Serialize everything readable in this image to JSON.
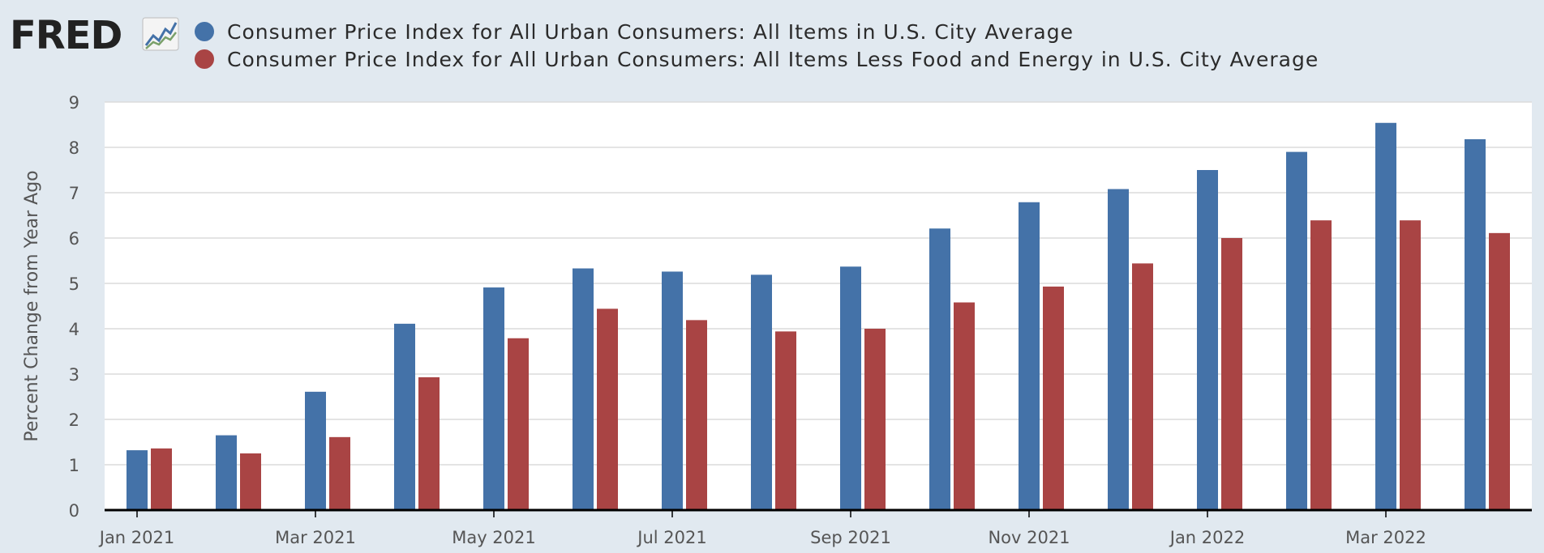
{
  "logo": {
    "text": "FRED",
    "icon": "line-chart-icon"
  },
  "chart_data": {
    "type": "bar",
    "title": "",
    "xlabel": "",
    "ylabel": "Percent Change from Year Ago",
    "ylim": [
      0,
      9
    ],
    "yticks": [
      0,
      1,
      2,
      3,
      4,
      5,
      6,
      7,
      8,
      9
    ],
    "grid": true,
    "legend_position": "top",
    "categories": [
      "2021-01",
      "2021-02",
      "2021-03",
      "2021-04",
      "2021-05",
      "2021-06",
      "2021-07",
      "2021-08",
      "2021-09",
      "2021-10",
      "2021-11",
      "2021-12",
      "2022-01",
      "2022-02",
      "2022-03",
      "2022-04"
    ],
    "xtick_labels": [
      {
        "category": "2021-01",
        "label": "Jan 2021"
      },
      {
        "category": "2021-03",
        "label": "Mar 2021"
      },
      {
        "category": "2021-05",
        "label": "May 2021"
      },
      {
        "category": "2021-07",
        "label": "Jul 2021"
      },
      {
        "category": "2021-09",
        "label": "Sep 2021"
      },
      {
        "category": "2021-11",
        "label": "Nov 2021"
      },
      {
        "category": "2022-01",
        "label": "Jan 2022"
      },
      {
        "category": "2022-03",
        "label": "Mar 2022"
      }
    ],
    "series": [
      {
        "name": "Consumer Price Index for All Urban Consumers: All Items in U.S. City Average",
        "color": "#4472a8",
        "values": [
          1.32,
          1.65,
          2.61,
          4.11,
          4.91,
          5.33,
          5.26,
          5.19,
          5.37,
          6.21,
          6.79,
          7.08,
          7.5,
          7.9,
          8.54,
          8.18
        ]
      },
      {
        "name": "Consumer Price Index for All Urban Consumers: All Items Less Food and Energy in U.S. City Average",
        "color": "#a94444",
        "values": [
          1.36,
          1.25,
          1.61,
          2.93,
          3.79,
          4.44,
          4.19,
          3.94,
          4.0,
          4.58,
          4.93,
          5.44,
          6.0,
          6.39,
          6.39,
          6.11
        ]
      }
    ]
  }
}
